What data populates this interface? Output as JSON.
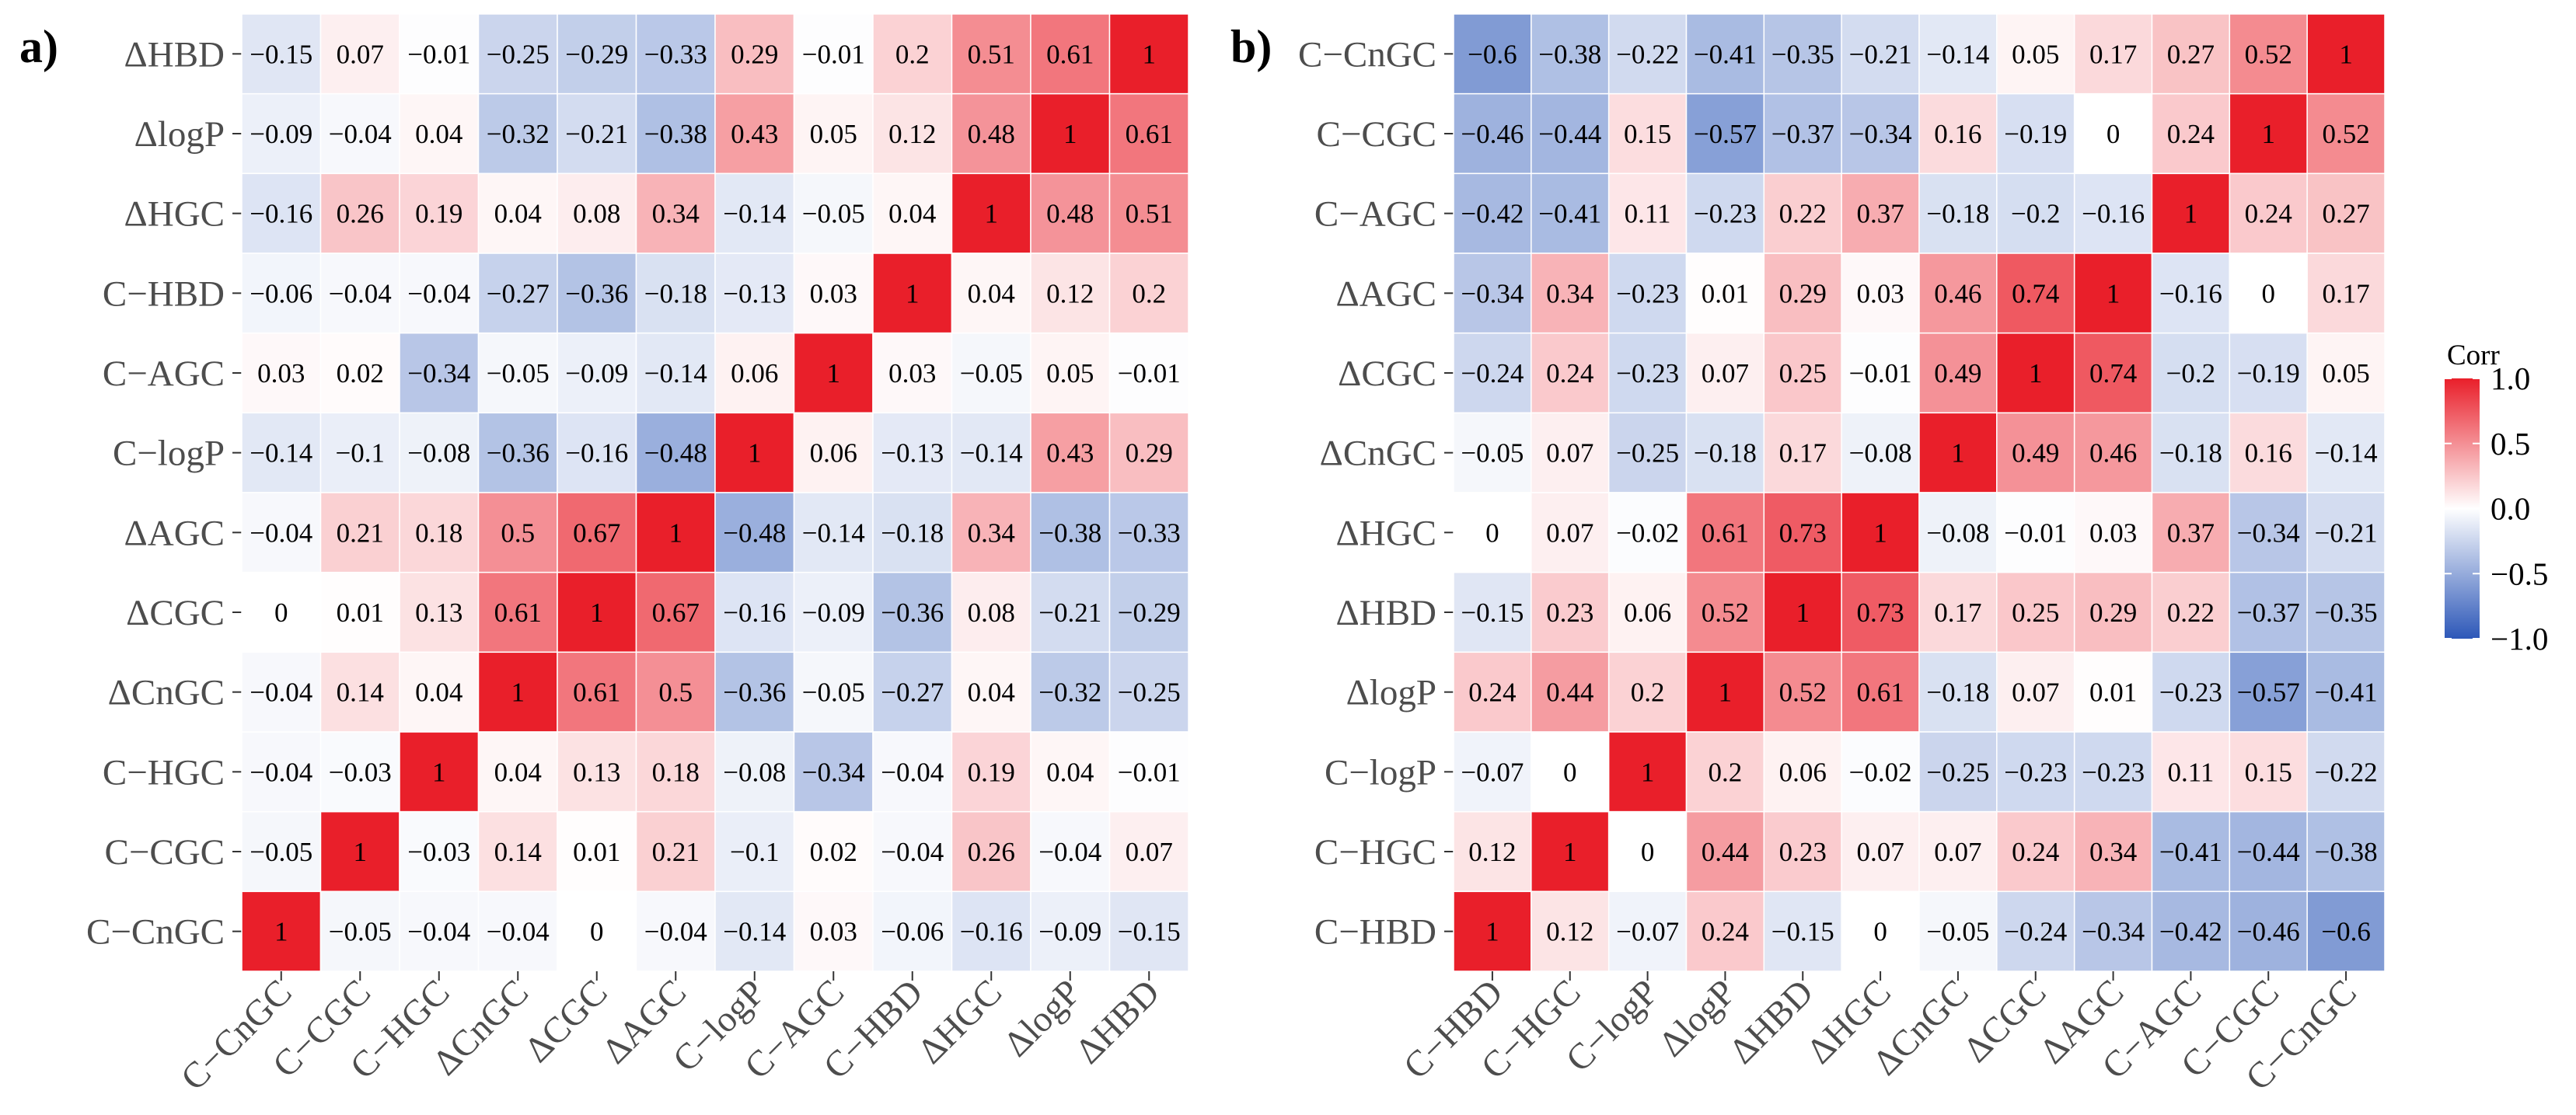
{
  "colors": {
    "low": "#2d58b8",
    "mid": "#ffffff",
    "high": "#e91f2a",
    "grid": "#ffffff"
  },
  "chart_data": [
    {
      "type": "heatmap",
      "panel_label": "a)",
      "title": "",
      "rows": [
        "ΔHBD",
        "ΔlogP",
        "ΔHGC",
        "C−HBD",
        "C−AGC",
        "C−logP",
        "ΔAGC",
        "ΔCGC",
        "ΔCnGC",
        "C−HGC",
        "C−CGC",
        "C−CnGC"
      ],
      "columns": [
        "C−CnGC",
        "C−CGC",
        "C−HGC",
        "ΔCnGC",
        "ΔCGC",
        "ΔAGC",
        "C−logP",
        "C−AGC",
        "C−HBD",
        "ΔHGC",
        "ΔlogP",
        "ΔHBD"
      ],
      "values": [
        [
          -0.15,
          0.07,
          -0.01,
          -0.25,
          -0.29,
          -0.33,
          0.29,
          -0.01,
          0.2,
          0.51,
          0.61,
          1
        ],
        [
          -0.09,
          -0.04,
          0.04,
          -0.32,
          -0.21,
          -0.38,
          0.43,
          0.05,
          0.12,
          0.48,
          1,
          0.61
        ],
        [
          -0.16,
          0.26,
          0.19,
          0.04,
          0.08,
          0.34,
          -0.14,
          -0.05,
          0.04,
          1,
          0.48,
          0.51
        ],
        [
          -0.06,
          -0.04,
          -0.04,
          -0.27,
          -0.36,
          -0.18,
          -0.13,
          0.03,
          1,
          0.04,
          0.12,
          0.2
        ],
        [
          0.03,
          0.02,
          -0.34,
          -0.05,
          -0.09,
          -0.14,
          0.06,
          1,
          0.03,
          -0.05,
          0.05,
          -0.01
        ],
        [
          -0.14,
          -0.1,
          -0.08,
          -0.36,
          -0.16,
          -0.48,
          1,
          0.06,
          -0.13,
          -0.14,
          0.43,
          0.29
        ],
        [
          -0.04,
          0.21,
          0.18,
          0.5,
          0.67,
          1,
          -0.48,
          -0.14,
          -0.18,
          0.34,
          -0.38,
          -0.33
        ],
        [
          0,
          0.01,
          0.13,
          0.61,
          1,
          0.67,
          -0.16,
          -0.09,
          -0.36,
          0.08,
          -0.21,
          -0.29
        ],
        [
          -0.04,
          0.14,
          0.04,
          1,
          0.61,
          0.5,
          -0.36,
          -0.05,
          -0.27,
          0.04,
          -0.32,
          -0.25
        ],
        [
          -0.04,
          -0.03,
          1,
          0.04,
          0.13,
          0.18,
          -0.08,
          -0.34,
          -0.04,
          0.19,
          0.04,
          -0.01
        ],
        [
          -0.05,
          1,
          -0.03,
          0.14,
          0.01,
          0.21,
          -0.1,
          0.02,
          -0.04,
          0.26,
          -0.04,
          0.07
        ],
        [
          1,
          -0.05,
          -0.04,
          -0.04,
          0,
          -0.04,
          -0.14,
          0.03,
          -0.06,
          -0.16,
          -0.09,
          -0.15
        ]
      ],
      "value_range": [
        -1,
        1
      ]
    },
    {
      "type": "heatmap",
      "panel_label": "b)",
      "title": "",
      "rows": [
        "C−CnGC",
        "C−CGC",
        "C−AGC",
        "ΔAGC",
        "ΔCGC",
        "ΔCnGC",
        "ΔHGC",
        "ΔHBD",
        "ΔlogP",
        "C−logP",
        "C−HGC",
        "C−HBD"
      ],
      "columns": [
        "C−HBD",
        "C−HGC",
        "C−logP",
        "ΔlogP",
        "ΔHBD",
        "ΔHGC",
        "ΔCnGC",
        "ΔCGC",
        "ΔAGC",
        "C−AGC",
        "C−CGC",
        "C−CnGC"
      ],
      "values": [
        [
          -0.6,
          -0.38,
          -0.22,
          -0.41,
          -0.35,
          -0.21,
          -0.14,
          0.05,
          0.17,
          0.27,
          0.52,
          1
        ],
        [
          -0.46,
          -0.44,
          0.15,
          -0.57,
          -0.37,
          -0.34,
          0.16,
          -0.19,
          0,
          0.24,
          1,
          0.52
        ],
        [
          -0.42,
          -0.41,
          0.11,
          -0.23,
          0.22,
          0.37,
          -0.18,
          -0.2,
          -0.16,
          1,
          0.24,
          0.27
        ],
        [
          -0.34,
          0.34,
          -0.23,
          0.01,
          0.29,
          0.03,
          0.46,
          0.74,
          1,
          -0.16,
          0,
          0.17
        ],
        [
          -0.24,
          0.24,
          -0.23,
          0.07,
          0.25,
          -0.01,
          0.49,
          1,
          0.74,
          -0.2,
          -0.19,
          0.05
        ],
        [
          -0.05,
          0.07,
          -0.25,
          -0.18,
          0.17,
          -0.08,
          1,
          0.49,
          0.46,
          -0.18,
          0.16,
          -0.14
        ],
        [
          0,
          0.07,
          -0.02,
          0.61,
          0.73,
          1,
          -0.08,
          -0.01,
          0.03,
          0.37,
          -0.34,
          -0.21
        ],
        [
          -0.15,
          0.23,
          0.06,
          0.52,
          1,
          0.73,
          0.17,
          0.25,
          0.29,
          0.22,
          -0.37,
          -0.35
        ],
        [
          0.24,
          0.44,
          0.2,
          1,
          0.52,
          0.61,
          -0.18,
          0.07,
          0.01,
          -0.23,
          -0.57,
          -0.41
        ],
        [
          -0.07,
          0,
          1,
          0.2,
          0.06,
          -0.02,
          -0.25,
          -0.23,
          -0.23,
          0.11,
          0.15,
          -0.22
        ],
        [
          0.12,
          1,
          0,
          0.44,
          0.23,
          0.07,
          0.07,
          0.24,
          0.34,
          -0.41,
          -0.44,
          -0.38
        ],
        [
          1,
          0.12,
          -0.07,
          0.24,
          -0.15,
          0,
          -0.05,
          -0.24,
          -0.34,
          -0.42,
          -0.46,
          -0.6
        ]
      ],
      "value_range": [
        -1,
        1
      ]
    }
  ],
  "legend": {
    "title": "Corr",
    "ticks": [
      1.0,
      0.5,
      0.0,
      -0.5,
      -1.0
    ],
    "tick_labels": [
      "1.0",
      "0.5",
      "0.0",
      "−0.5",
      "−1.0"
    ]
  }
}
